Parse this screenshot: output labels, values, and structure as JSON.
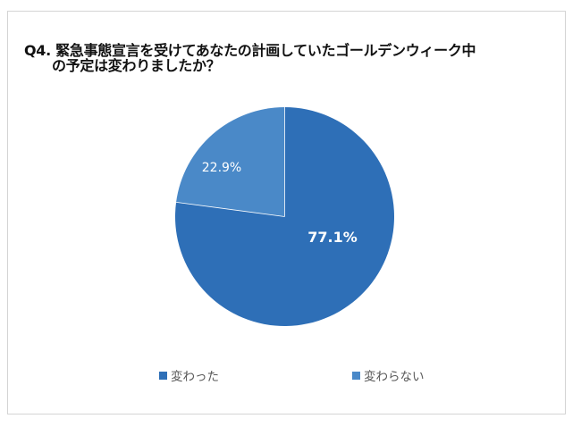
{
  "title": {
    "line1": "Q4. 緊急事態宣言を受けてあなたの計画していたゴールデンウィーク中",
    "line2": "の予定は変わりましたか？"
  },
  "legend": [
    {
      "label": "変わった",
      "color": "#2E6FB7"
    },
    {
      "label": "変わらない",
      "color": "#4A89C8"
    }
  ],
  "labels": {
    "changed": "77.1%",
    "unchanged": "22.9%"
  },
  "colors": {
    "changed": "#2E6FB7",
    "unchanged": "#4A89C8",
    "border": "#D4D4D4"
  },
  "chart_data": {
    "type": "pie",
    "title": "Q4. 緊急事態宣言を受けてあなたの計画していたゴールデンウィーク中の予定は変わりましたか？",
    "categories": [
      "変わった",
      "変わらない"
    ],
    "values": [
      77.1,
      22.9
    ],
    "unit": "%",
    "data_labels": [
      "77.1%",
      "22.9%"
    ],
    "colors": [
      "#2E6FB7",
      "#4A89C8"
    ],
    "start_angle": "12 o'clock",
    "legend_position": "bottom"
  }
}
